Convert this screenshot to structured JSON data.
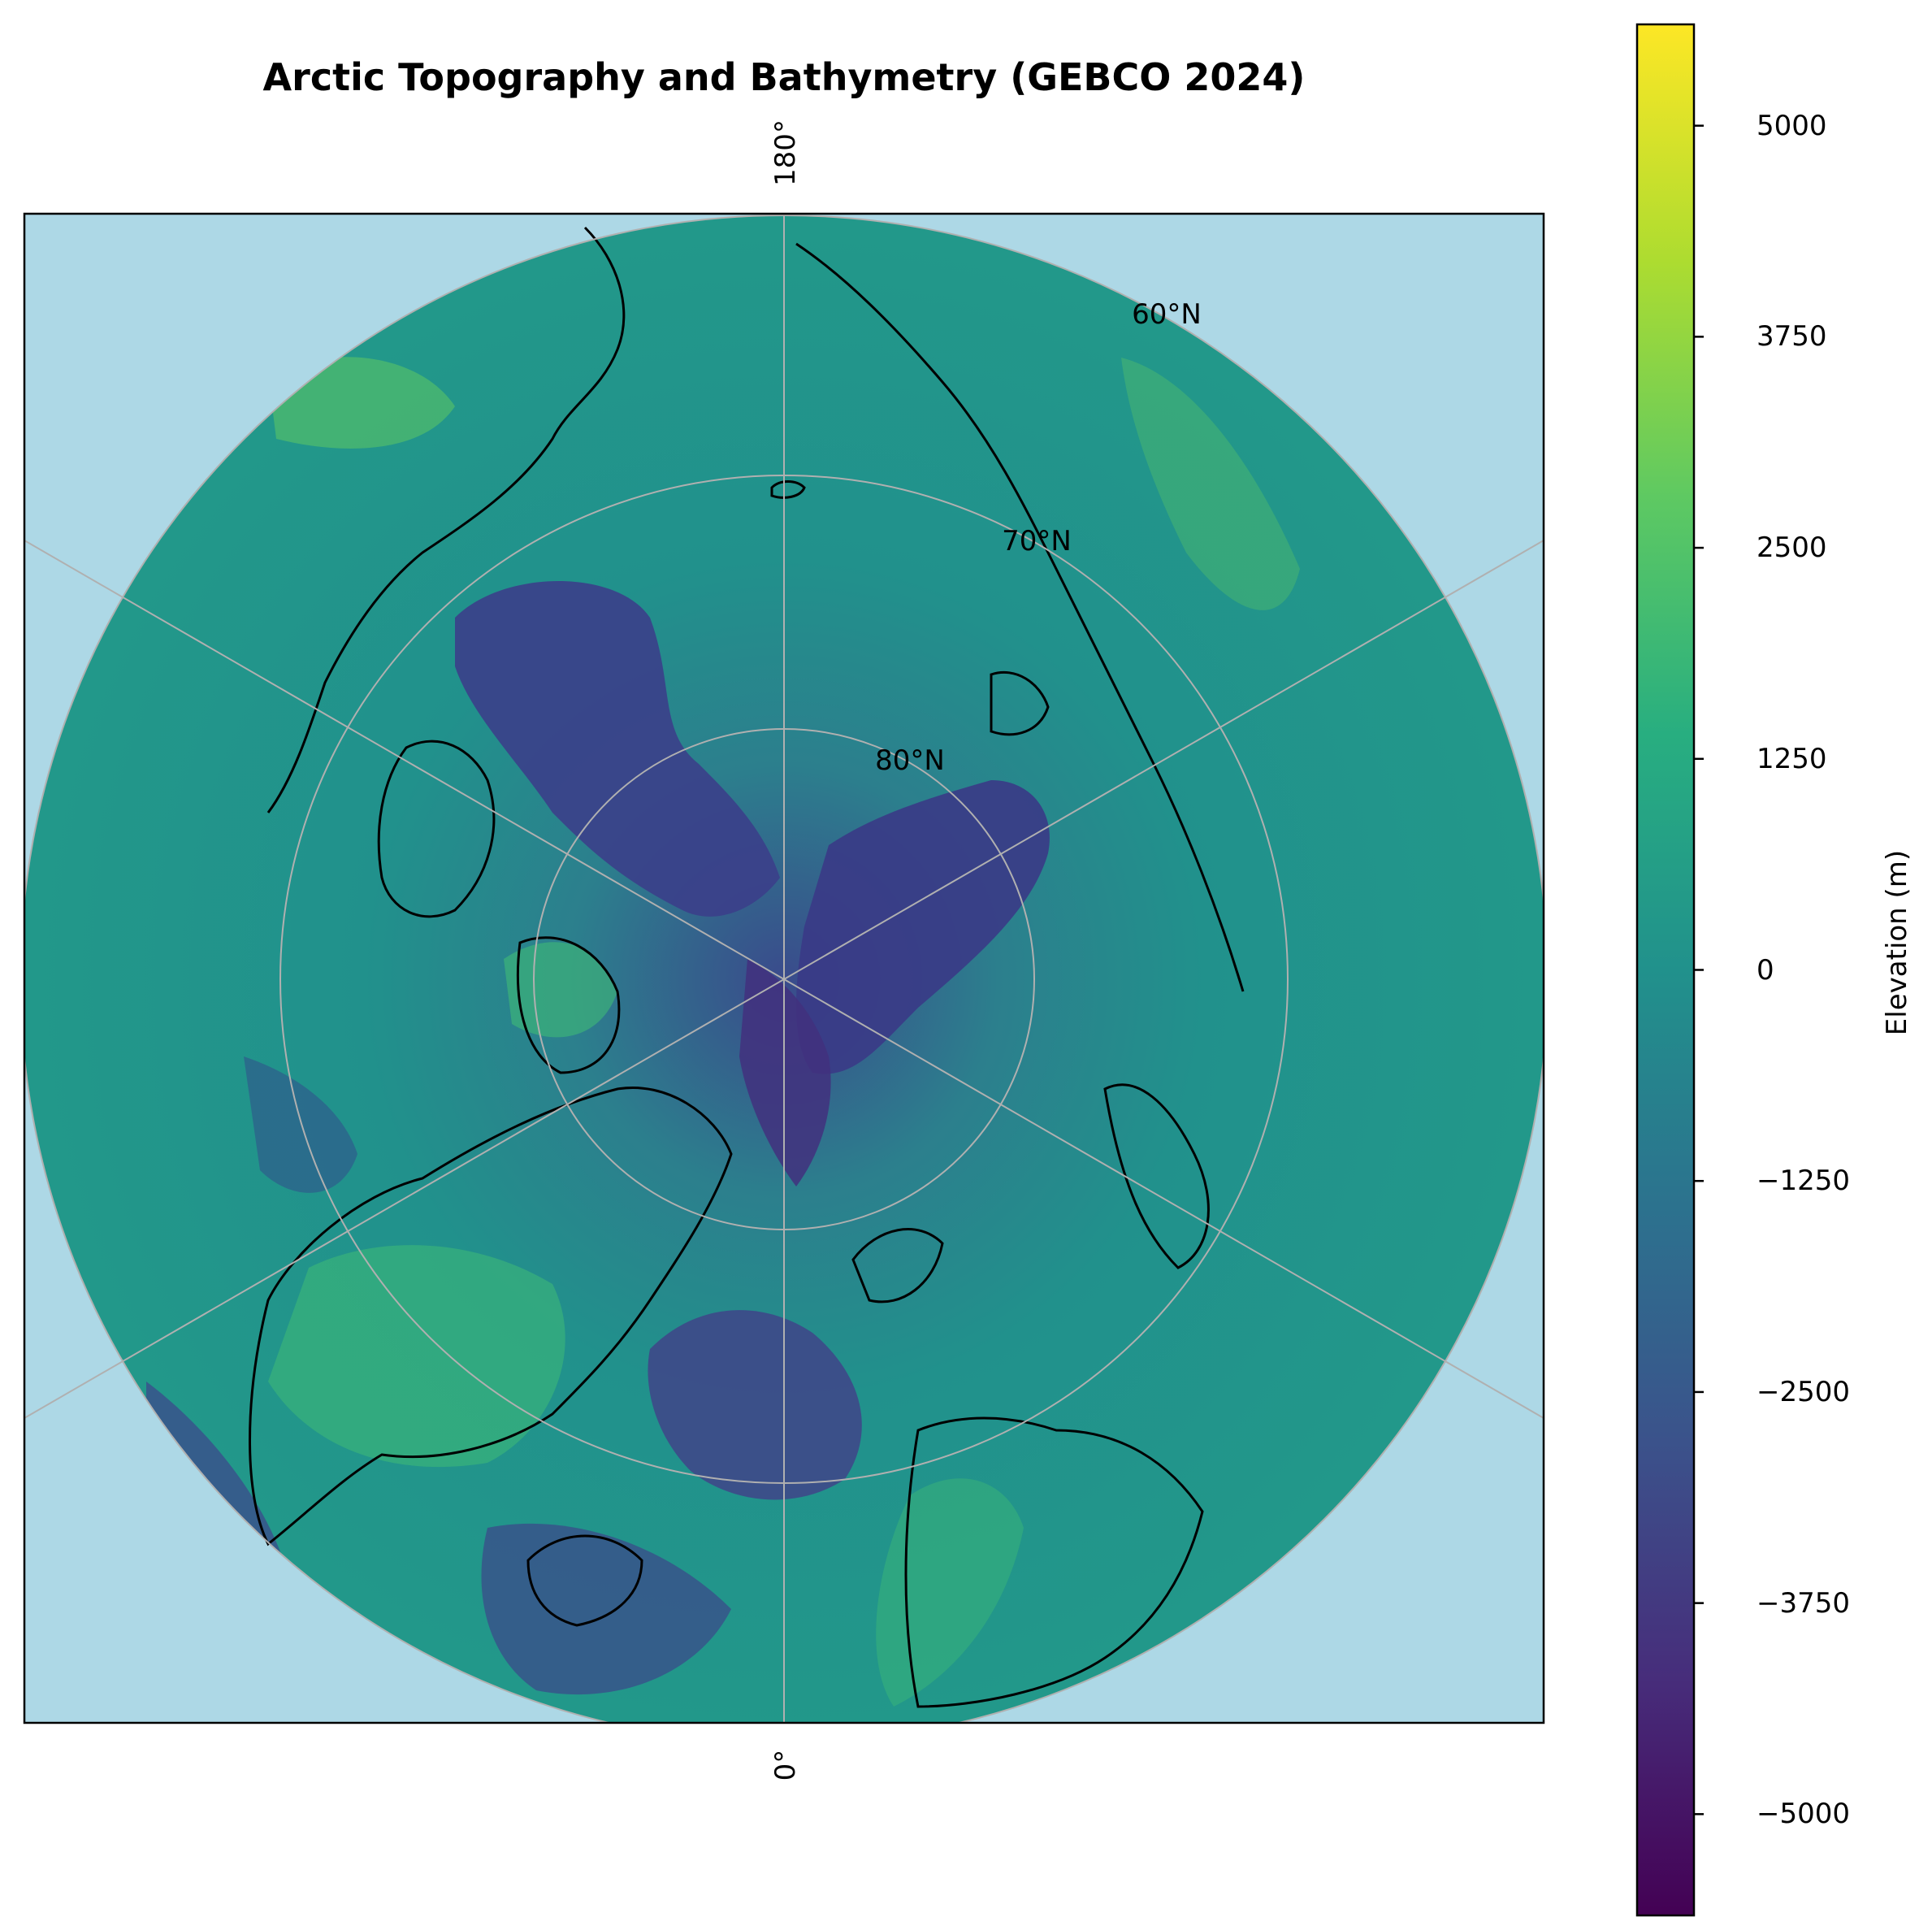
{
  "figure": {
    "title": "Arctic Topography and Bathymetry (GEBCO 2024)"
  },
  "map": {
    "projection": "north-polar-stereographic",
    "ocean_color": "#add8e6",
    "coastline_color": "#000000",
    "graticule_color": "#b0b0b0",
    "meridian_labels": {
      "top": "180°",
      "bottom": "0°"
    },
    "latitude_labels": [
      "60°N",
      "70°N",
      "80°N"
    ],
    "colormap": "viridis"
  },
  "colorbar": {
    "label": "Elevation (m)",
    "range": [
      -5600,
      5600
    ],
    "ticks": [
      "5000",
      "3750",
      "2500",
      "1250",
      "0",
      "−1250",
      "−2500",
      "−3750",
      "−5000"
    ],
    "tick_values": [
      5000,
      3750,
      2500,
      1250,
      0,
      -1250,
      -2500,
      -3750,
      -5000
    ]
  }
}
